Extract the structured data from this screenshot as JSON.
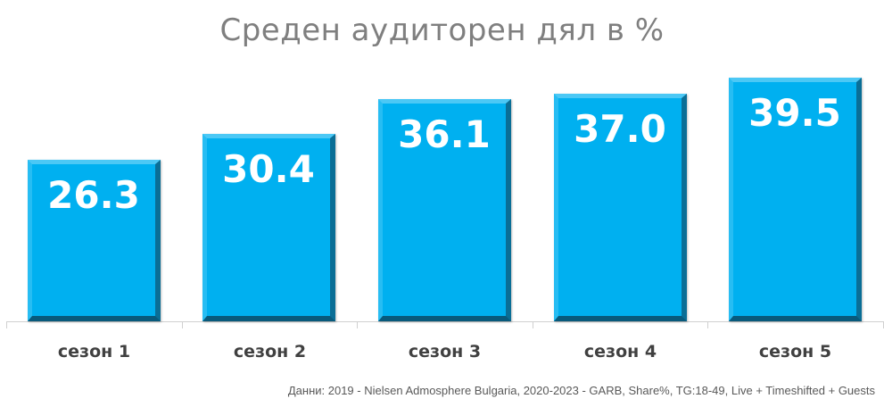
{
  "chart_data": {
    "type": "bar",
    "title": "Среден аудиторен дял в %",
    "categories": [
      "сезон 1",
      "сезон 2",
      "сезон 3",
      "сезон 4",
      "сезон 5"
    ],
    "values": [
      26.3,
      30.4,
      36.1,
      37.0,
      39.5
    ],
    "value_labels": [
      "26.3",
      "30.4",
      "36.1",
      "37.0",
      "39.5"
    ],
    "xlabel": "",
    "ylabel": "",
    "ylim": [
      0,
      40
    ],
    "grid": false,
    "legend": null,
    "bar_color": "#00b0f0",
    "annotation": "Данни: 2019 - Nielsen Admosphere Bulgaria, 2020-2023 - GARB, Share%, TG:18-49, Live + Timeshifted + Guests"
  },
  "colors": {
    "bar": "#00b0f0",
    "title": "#7f7f7f",
    "category_label": "#404040",
    "source_text": "#595959"
  }
}
